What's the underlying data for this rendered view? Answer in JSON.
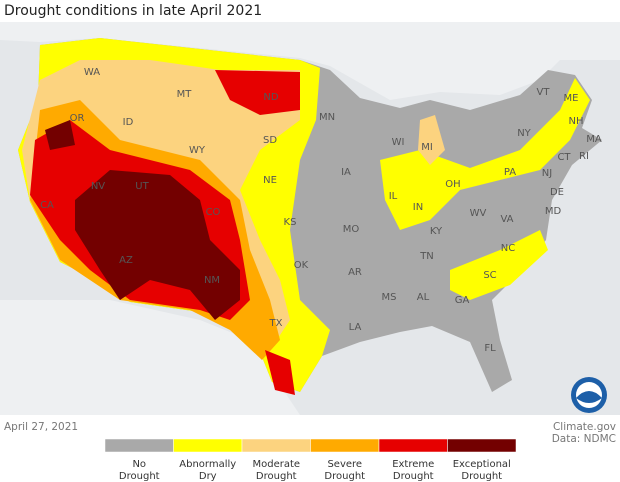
{
  "header": {
    "title": "Drought conditions in late April 2021"
  },
  "footer": {
    "date": "April 27, 2021",
    "source": "Climate.gov",
    "data_credit": "Data: NDMC"
  },
  "legend": [
    {
      "lines": [
        "No",
        "Drought"
      ],
      "color": "#a9a9a9"
    },
    {
      "lines": [
        "Abnormally",
        "Dry"
      ],
      "color": "#ffff00"
    },
    {
      "lines": [
        "Moderate",
        "Drought"
      ],
      "color": "#fcd37f"
    },
    {
      "lines": [
        "Severe",
        "Drought"
      ],
      "color": "#ffaa00"
    },
    {
      "lines": [
        "Extreme",
        "Drought"
      ],
      "color": "#e60000"
    },
    {
      "lines": [
        "Exceptional",
        "Drought"
      ],
      "color": "#730000"
    }
  ],
  "states": [
    "WA",
    "OR",
    "CA",
    "NV",
    "ID",
    "MT",
    "WY",
    "UT",
    "AZ",
    "CO",
    "NM",
    "ND",
    "SD",
    "NE",
    "KS",
    "OK",
    "TX",
    "MN",
    "IA",
    "MO",
    "AR",
    "LA",
    "WI",
    "IL",
    "MI",
    "IN",
    "OH",
    "KY",
    "TN",
    "MS",
    "AL",
    "GA",
    "FL",
    "SC",
    "NC",
    "VA",
    "WV",
    "PA",
    "NY",
    "VT",
    "ME",
    "NH",
    "MA",
    "CT",
    "RI",
    "NJ",
    "DE",
    "MD"
  ]
}
